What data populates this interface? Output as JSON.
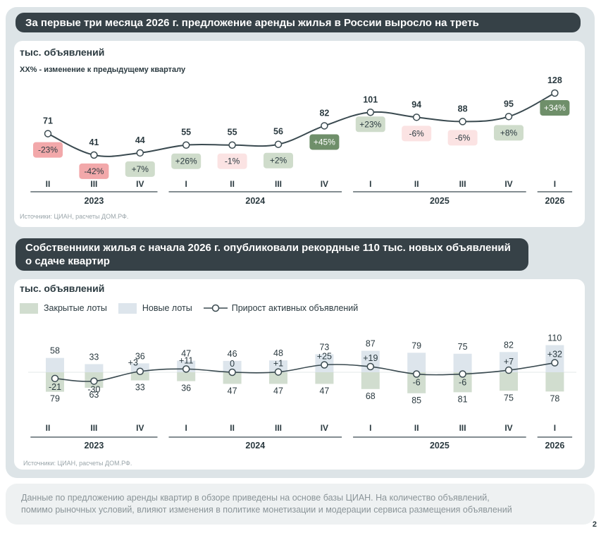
{
  "page_number": "2",
  "top": {
    "banner": "За первые три месяца 2026 г. предложение аренды жилья в России выросло на треть",
    "unit": "тыс. объявлений",
    "note": "XX% - изменение к предыдущему кварталу",
    "source": "Источники: ЦИАН, расчеты ДОМ.РФ."
  },
  "bottom": {
    "banner_line1": "Собственники жилья с начала 2026 г. опубликовали рекордные 110 тыс. новых объявлений",
    "banner_line2": "о сдаче квартир",
    "unit": "тыс. объявлений",
    "legend": {
      "closed": "Закрытые лоты",
      "new": "Новые лоты",
      "growth": "Прирост активных объявлений"
    },
    "source": "Источники: ЦИАН, расчеты ДОМ.РФ."
  },
  "footer_line1": "Данные по предложению аренды квартир в обзоре приведены на основе базы ЦИАН. На количество объявлений,",
  "footer_line2": "помимо рыночных условий, влияют изменения в политике монетизации и модерации сервиса размещения объявлений",
  "chart_data": [
    {
      "type": "line",
      "x": [
        "II",
        "III",
        "IV",
        "I",
        "II",
        "III",
        "IV",
        "I",
        "II",
        "III",
        "IV",
        "I"
      ],
      "years": [
        {
          "label": "2023",
          "from": 0,
          "to": 2
        },
        {
          "label": "2024",
          "from": 3,
          "to": 6
        },
        {
          "label": "2025",
          "from": 7,
          "to": 10
        },
        {
          "label": "2026",
          "from": 11,
          "to": 11
        }
      ],
      "values": [
        71,
        41,
        44,
        55,
        55,
        56,
        82,
        101,
        94,
        88,
        95,
        128
      ],
      "change_labels": [
        "-23%",
        "-42%",
        "+7%",
        "+26%",
        "-1%",
        "+2%",
        "+45%",
        "+23%",
        "-6%",
        "-6%",
        "+8%",
        "+34%"
      ],
      "change_values": [
        -23,
        -42,
        7,
        26,
        -1,
        2,
        45,
        23,
        -6,
        -6,
        8,
        34
      ],
      "colors": {
        "line": "#3a4a50",
        "strong_neg": "#f2a8aa",
        "weak_neg": "#fbe3e3",
        "strong_pos": "#6f8f6a",
        "weak_pos": "#cfdccb"
      }
    },
    {
      "type": "bar",
      "x": [
        "II",
        "III",
        "IV",
        "I",
        "II",
        "III",
        "IV",
        "I",
        "II",
        "III",
        "IV",
        "I"
      ],
      "years": [
        {
          "label": "2023",
          "from": 0,
          "to": 2
        },
        {
          "label": "2024",
          "from": 3,
          "to": 6
        },
        {
          "label": "2025",
          "from": 7,
          "to": 10
        },
        {
          "label": "2026",
          "from": 11,
          "to": 11
        }
      ],
      "series": [
        {
          "name": "Новые лоты",
          "values": [
            58,
            33,
            36,
            47,
            46,
            48,
            73,
            87,
            79,
            75,
            82,
            110
          ],
          "color": "#dde5ec"
        },
        {
          "name": "Закрытые лоты",
          "values": [
            79,
            63,
            33,
            36,
            47,
            47,
            47,
            68,
            85,
            81,
            75,
            78
          ],
          "color": "#d1ddcf"
        },
        {
          "name": "Прирост активных объявлений",
          "values": [
            -21,
            -30,
            3,
            11,
            0,
            1,
            25,
            19,
            -6,
            -6,
            7,
            32
          ],
          "labels": [
            "-21",
            "-30",
            "+3",
            "+11",
            "0",
            "+1",
            "+25",
            "+19",
            "-6",
            "-6",
            "+7",
            "+32"
          ],
          "color": "#3a4a50"
        }
      ]
    }
  ]
}
